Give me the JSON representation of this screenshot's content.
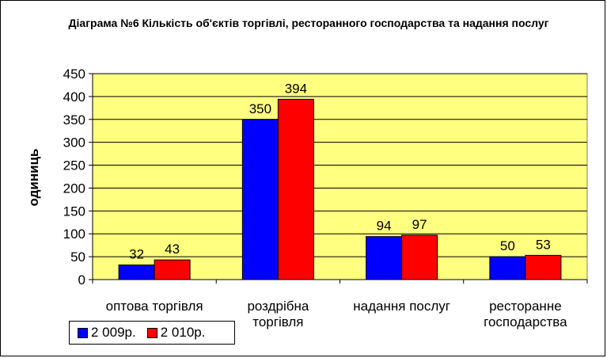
{
  "chart_data": {
    "type": "bar",
    "title": "Діаграма №6 Кількість об'єктів торгівлі, ресторанного  господарства та надання послуг",
    "ylabel": "одиниць",
    "xlabel": "",
    "ylim": [
      0,
      450
    ],
    "yticks": [
      0,
      50,
      100,
      150,
      200,
      250,
      300,
      350,
      400,
      450
    ],
    "categories": [
      "оптова торгівля",
      "роздрібна торгівля",
      "надання послуг",
      "ресторанне господарства"
    ],
    "series": [
      {
        "name": "2 009р.",
        "values": [
          32,
          350,
          94,
          50
        ],
        "color": "#0000ff"
      },
      {
        "name": "2 010р.",
        "values": [
          43,
          394,
          97,
          53
        ],
        "color": "#ff0000"
      }
    ],
    "plot_background": "#ffff80",
    "grid": true,
    "legend_position": "bottom-left"
  }
}
